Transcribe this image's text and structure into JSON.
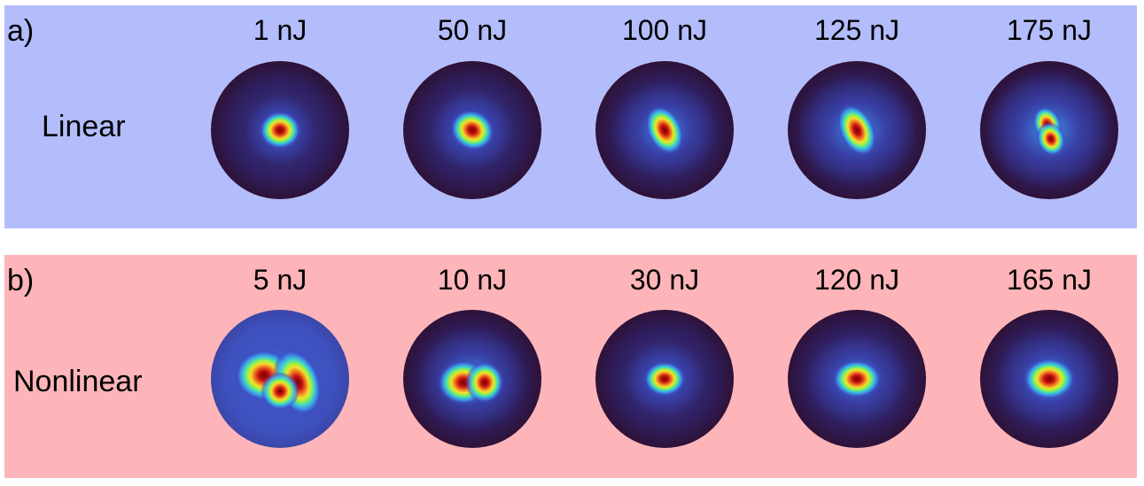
{
  "panels": [
    {
      "label": "a)",
      "row_label": "Linear",
      "background": "#b3bdfb",
      "energies": [
        "1 nJ",
        "50 nJ",
        "100 nJ",
        "125 nJ",
        "175 nJ"
      ]
    },
    {
      "label": "b)",
      "row_label": "Nonlinear",
      "background": "#fdb5b9",
      "energies": [
        "5 nJ",
        "10 nJ",
        "30 nJ",
        "120 nJ",
        "165 nJ"
      ]
    }
  ],
  "colormap": [
    "#2e1238",
    "#3b4cc0",
    "#3fa0f0",
    "#40e0c0",
    "#a0f040",
    "#f0e030",
    "#f07020",
    "#c01010",
    "#7a0000"
  ]
}
